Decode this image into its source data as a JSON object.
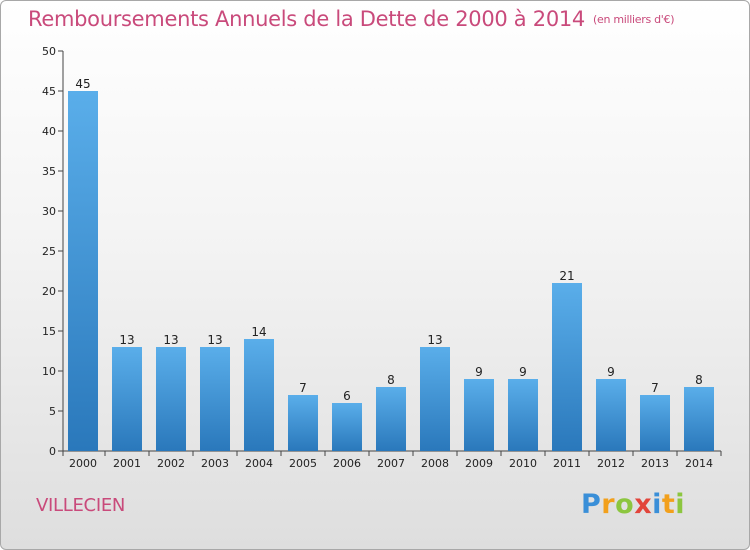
{
  "header": {
    "title": "Remboursements Annuels de la Dette de 2000 à 2014",
    "unit": "(en milliers d'€)"
  },
  "footer": {
    "commune": "VILLECIEN",
    "logo_text": "Proxiti"
  },
  "colors": {
    "bar_top": "#5aaeea",
    "bar_bottom": "#2a78bb",
    "title": "#c94a7b"
  },
  "chart_data": {
    "type": "bar",
    "title": "Remboursements Annuels de la Dette de 2000 à 2014",
    "subtitle": "(en milliers d'€)",
    "xlabel": "",
    "ylabel": "",
    "categories": [
      "2000",
      "2001",
      "2002",
      "2003",
      "2004",
      "2005",
      "2006",
      "2007",
      "2008",
      "2009",
      "2010",
      "2011",
      "2012",
      "2013",
      "2014"
    ],
    "values": [
      45,
      13,
      13,
      13,
      14,
      7,
      6,
      8,
      13,
      9,
      9,
      21,
      9,
      7,
      8
    ],
    "ylim": [
      0,
      50
    ],
    "yticks": [
      0,
      5,
      10,
      15,
      20,
      25,
      30,
      35,
      40,
      45,
      50
    ],
    "grid": false,
    "legend": "none"
  }
}
